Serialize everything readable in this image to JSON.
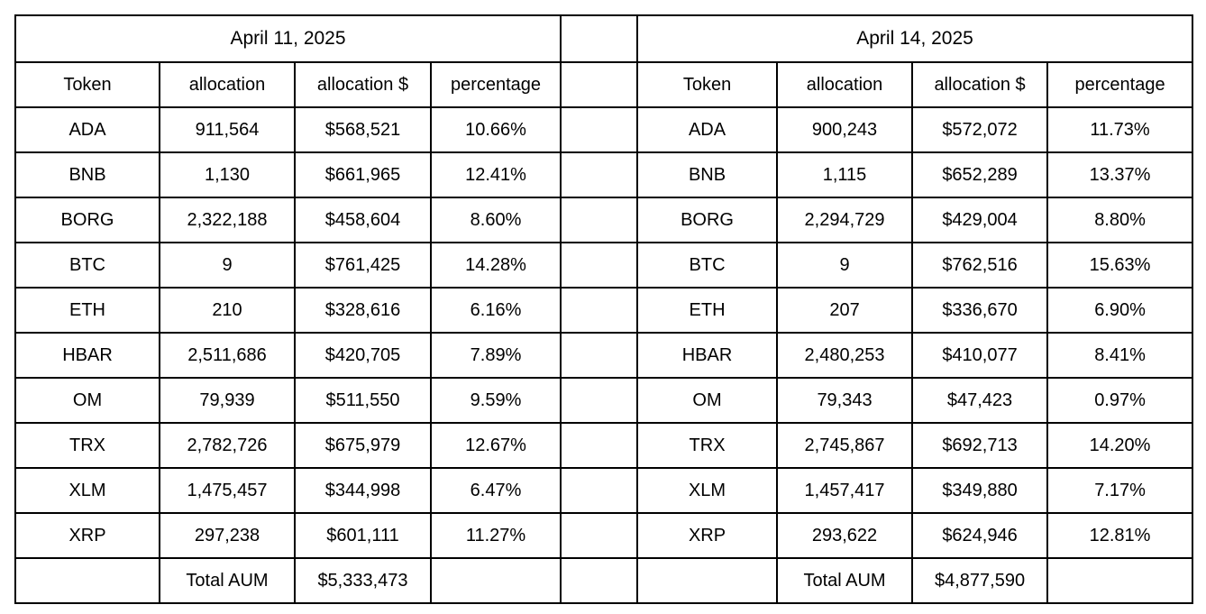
{
  "page": {
    "background_color": "#ffffff",
    "border_color": "#000000",
    "text_color": "#000000"
  },
  "tables": [
    {
      "title": "April 11, 2025",
      "columns": [
        "Token",
        "allocation",
        "allocation $",
        "percentage"
      ],
      "rows": [
        [
          "ADA",
          "911,564",
          "$568,521",
          "10.66%"
        ],
        [
          "BNB",
          "1,130",
          "$661,965",
          "12.41%"
        ],
        [
          "BORG",
          "2,322,188",
          "$458,604",
          "8.60%"
        ],
        [
          "BTC",
          "9",
          "$761,425",
          "14.28%"
        ],
        [
          "ETH",
          "210",
          "$328,616",
          "6.16%"
        ],
        [
          "HBAR",
          "2,511,686",
          "$420,705",
          "7.89%"
        ],
        [
          "OM",
          "79,939",
          "$511,550",
          "9.59%"
        ],
        [
          "TRX",
          "2,782,726",
          "$675,979",
          "12.67%"
        ],
        [
          "XLM",
          "1,475,457",
          "$344,998",
          "6.47%"
        ],
        [
          "XRP",
          "297,238",
          "$601,111",
          "11.27%"
        ]
      ],
      "total_label": "Total AUM",
      "total_value": "$5,333,473"
    },
    {
      "title": "April 14, 2025",
      "columns": [
        "Token",
        "allocation",
        "allocation $",
        "percentage"
      ],
      "rows": [
        [
          "ADA",
          "900,243",
          "$572,072",
          "11.73%"
        ],
        [
          "BNB",
          "1,115",
          "$652,289",
          "13.37%"
        ],
        [
          "BORG",
          "2,294,729",
          "$429,004",
          "8.80%"
        ],
        [
          "BTC",
          "9",
          "$762,516",
          "15.63%"
        ],
        [
          "ETH",
          "207",
          "$336,670",
          "6.90%"
        ],
        [
          "HBAR",
          "2,480,253",
          "$410,077",
          "8.41%"
        ],
        [
          "OM",
          "79,343",
          "$47,423",
          "0.97%"
        ],
        [
          "TRX",
          "2,745,867",
          "$692,713",
          "14.20%"
        ],
        [
          "XLM",
          "1,457,417",
          "$349,880",
          "7.17%"
        ],
        [
          "XRP",
          "293,622",
          "$624,946",
          "12.81%"
        ]
      ],
      "total_label": "Total AUM",
      "total_value": "$4,877,590"
    }
  ]
}
